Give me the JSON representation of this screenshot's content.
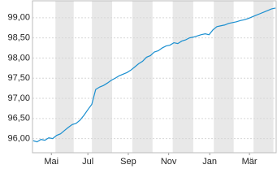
{
  "chart_data": {
    "type": "line",
    "x": [
      -28,
      -22,
      -16,
      -10,
      -4,
      2,
      8,
      14,
      20,
      26,
      32,
      38,
      44,
      50,
      56,
      62,
      68,
      74,
      80,
      86,
      92,
      98,
      104,
      110,
      116,
      122,
      128,
      134,
      140,
      146,
      152,
      158,
      164,
      170,
      176,
      182,
      188,
      194,
      200,
      206,
      212,
      218,
      224,
      230,
      236,
      242,
      248,
      254,
      260,
      266,
      272,
      278,
      284,
      290,
      296,
      302,
      308,
      314,
      320,
      326,
      332,
      338,
      344
    ],
    "series": [
      {
        "color": "#1a8fd0",
        "values": [
          95.95,
          95.92,
          95.98,
          95.96,
          96.02,
          96.0,
          96.08,
          96.12,
          96.2,
          96.28,
          96.35,
          96.38,
          96.46,
          96.58,
          96.72,
          96.85,
          97.22,
          97.28,
          97.32,
          97.38,
          97.45,
          97.5,
          97.56,
          97.6,
          97.64,
          97.7,
          97.78,
          97.86,
          97.92,
          98.02,
          98.06,
          98.15,
          98.18,
          98.25,
          98.3,
          98.32,
          98.38,
          98.36,
          98.42,
          98.45,
          98.5,
          98.52,
          98.55,
          98.58,
          98.6,
          98.58,
          98.7,
          98.78,
          98.8,
          98.82,
          98.86,
          98.88,
          98.9,
          98.93,
          98.95,
          98.98,
          99.02,
          99.06,
          99.1,
          99.14,
          99.18,
          99.22,
          99.24
        ]
      }
    ],
    "xlim": [
      -29,
      345
    ],
    "xticks": [
      {
        "value": 0,
        "label": "Mai"
      },
      {
        "value": 56,
        "label": "Jul"
      },
      {
        "value": 118,
        "label": "Sep"
      },
      {
        "value": 180,
        "label": "Nov"
      },
      {
        "value": 243,
        "label": "Jan"
      },
      {
        "value": 304,
        "label": "Mär"
      }
    ],
    "ylim": [
      95.65,
      99.42
    ],
    "yticks": [
      {
        "value": 96,
        "label": "96,00"
      },
      {
        "value": 96.5,
        "label": "96,50"
      },
      {
        "value": 97,
        "label": "97,00"
      },
      {
        "value": 97.5,
        "label": "97,50"
      },
      {
        "value": 98,
        "label": "98,00"
      },
      {
        "value": 98.5,
        "label": "98,50"
      },
      {
        "value": 99,
        "label": "99,00"
      }
    ],
    "grid": true
  }
}
